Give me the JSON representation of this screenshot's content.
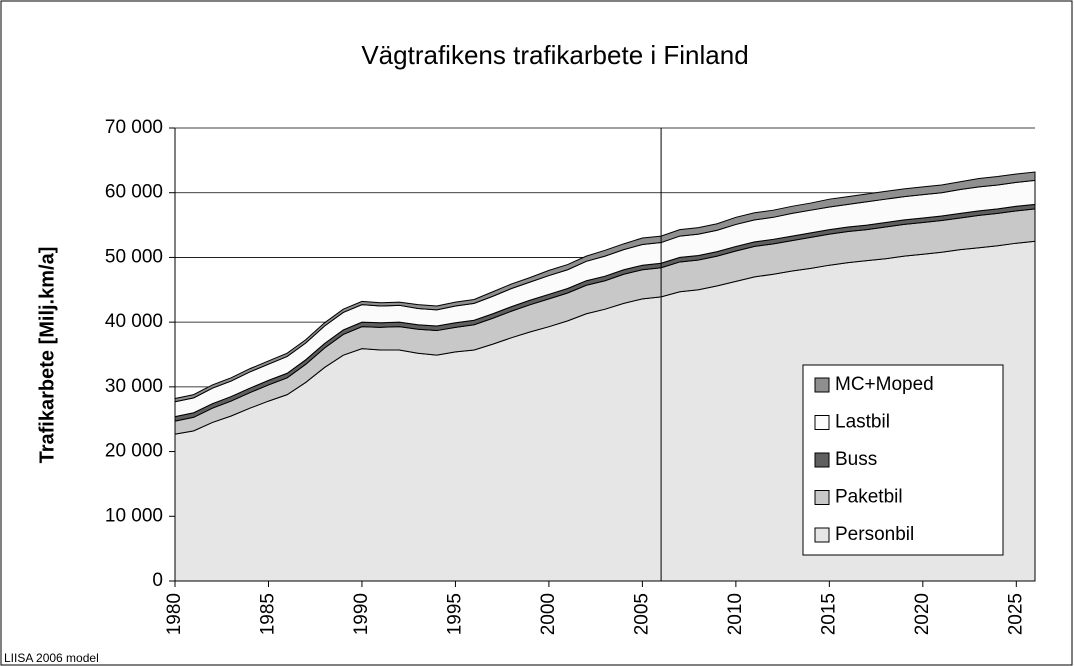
{
  "chart_data": {
    "type": "stacked_area",
    "title": "Vägtrafikens trafikarbete i Finland",
    "y_label": "Trafikarbete [Milj.km/a]",
    "footnote": "LIISA 2006 model",
    "x": [
      1980,
      1981,
      1982,
      1983,
      1984,
      1985,
      1986,
      1987,
      1988,
      1989,
      1990,
      1991,
      1992,
      1993,
      1994,
      1995,
      1996,
      1997,
      1998,
      1999,
      2000,
      2001,
      2002,
      2003,
      2004,
      2005,
      2006,
      2007,
      2008,
      2009,
      2010,
      2011,
      2012,
      2013,
      2014,
      2015,
      2016,
      2017,
      2018,
      2019,
      2020,
      2021,
      2022,
      2023,
      2024,
      2025,
      2026
    ],
    "xlim": [
      1980,
      2026
    ],
    "xticks": [
      1980,
      1985,
      1990,
      1995,
      2000,
      2005,
      2010,
      2015,
      2020,
      2025
    ],
    "ylim": [
      0,
      70000
    ],
    "yticks": [
      0,
      {
        "value": 10000,
        "label": "10 000"
      },
      {
        "value": 20000,
        "label": "20 000"
      },
      {
        "value": 30000,
        "label": "30 000"
      },
      {
        "value": 40000,
        "label": "40 000"
      },
      {
        "value": 50000,
        "label": "50 000"
      },
      {
        "value": 60000,
        "label": "60 000"
      },
      {
        "value": 70000,
        "label": "70 000"
      }
    ],
    "grid": true,
    "vline": 2006,
    "legend": "right",
    "series": [
      {
        "name": "Personbil",
        "color": "#e6e6e6",
        "values": [
          22700,
          23200,
          24500,
          25500,
          26700,
          27800,
          28800,
          30700,
          33000,
          34900,
          35900,
          35700,
          35700,
          35200,
          34900,
          35400,
          35700,
          36600,
          37600,
          38500,
          39300,
          40200,
          41300,
          42000,
          42900,
          43600,
          43900,
          44700,
          45000,
          45600,
          46300,
          47000,
          47400,
          47900,
          48300,
          48800,
          49200,
          49500,
          49800,
          50200,
          50500,
          50800,
          51200,
          51500,
          51800,
          52200,
          52500
        ]
      },
      {
        "name": "Paketbil",
        "color": "#c8c8c8",
        "values": [
          2000,
          2100,
          2200,
          2300,
          2400,
          2500,
          2600,
          2800,
          3000,
          3200,
          3400,
          3500,
          3600,
          3700,
          3800,
          3800,
          3900,
          4000,
          4100,
          4200,
          4300,
          4300,
          4400,
          4400,
          4500,
          4500,
          4500,
          4600,
          4600,
          4600,
          4700,
          4700,
          4700,
          4700,
          4800,
          4800,
          4800,
          4800,
          4900,
          4900,
          4900,
          4900,
          4900,
          5000,
          5000,
          5000,
          5000
        ]
      },
      {
        "name": "Buss",
        "color": "#5f5f5f",
        "values": [
          700,
          700,
          700,
          700,
          700,
          700,
          700,
          700,
          700,
          700,
          700,
          700,
          700,
          700,
          700,
          700,
          700,
          700,
          700,
          700,
          700,
          700,
          700,
          700,
          700,
          700,
          700,
          700,
          700,
          700,
          700,
          700,
          700,
          700,
          700,
          700,
          700,
          700,
          700,
          700,
          700,
          700,
          700,
          700,
          700,
          700,
          700
        ]
      },
      {
        "name": "Lastbil",
        "color": "#fbfbfb",
        "values": [
          2300,
          2300,
          2400,
          2400,
          2500,
          2500,
          2600,
          2600,
          2700,
          2700,
          2700,
          2600,
          2600,
          2500,
          2500,
          2600,
          2600,
          2700,
          2800,
          2800,
          2900,
          2900,
          3000,
          3100,
          3100,
          3200,
          3200,
          3300,
          3300,
          3300,
          3400,
          3400,
          3400,
          3500,
          3500,
          3500,
          3500,
          3600,
          3600,
          3600,
          3600,
          3600,
          3700,
          3700,
          3700,
          3700,
          3700
        ]
      },
      {
        "name": "MC+Moped",
        "color": "#8f8f8f",
        "values": [
          500,
          500,
          500,
          500,
          500,
          500,
          500,
          500,
          500,
          500,
          500,
          500,
          500,
          600,
          600,
          600,
          600,
          700,
          700,
          700,
          800,
          800,
          800,
          900,
          900,
          1000,
          1000,
          1000,
          1000,
          1000,
          1100,
          1100,
          1100,
          1100,
          1100,
          1200,
          1200,
          1200,
          1200,
          1200,
          1200,
          1200,
          1200,
          1300,
          1300,
          1300,
          1300
        ]
      }
    ]
  }
}
